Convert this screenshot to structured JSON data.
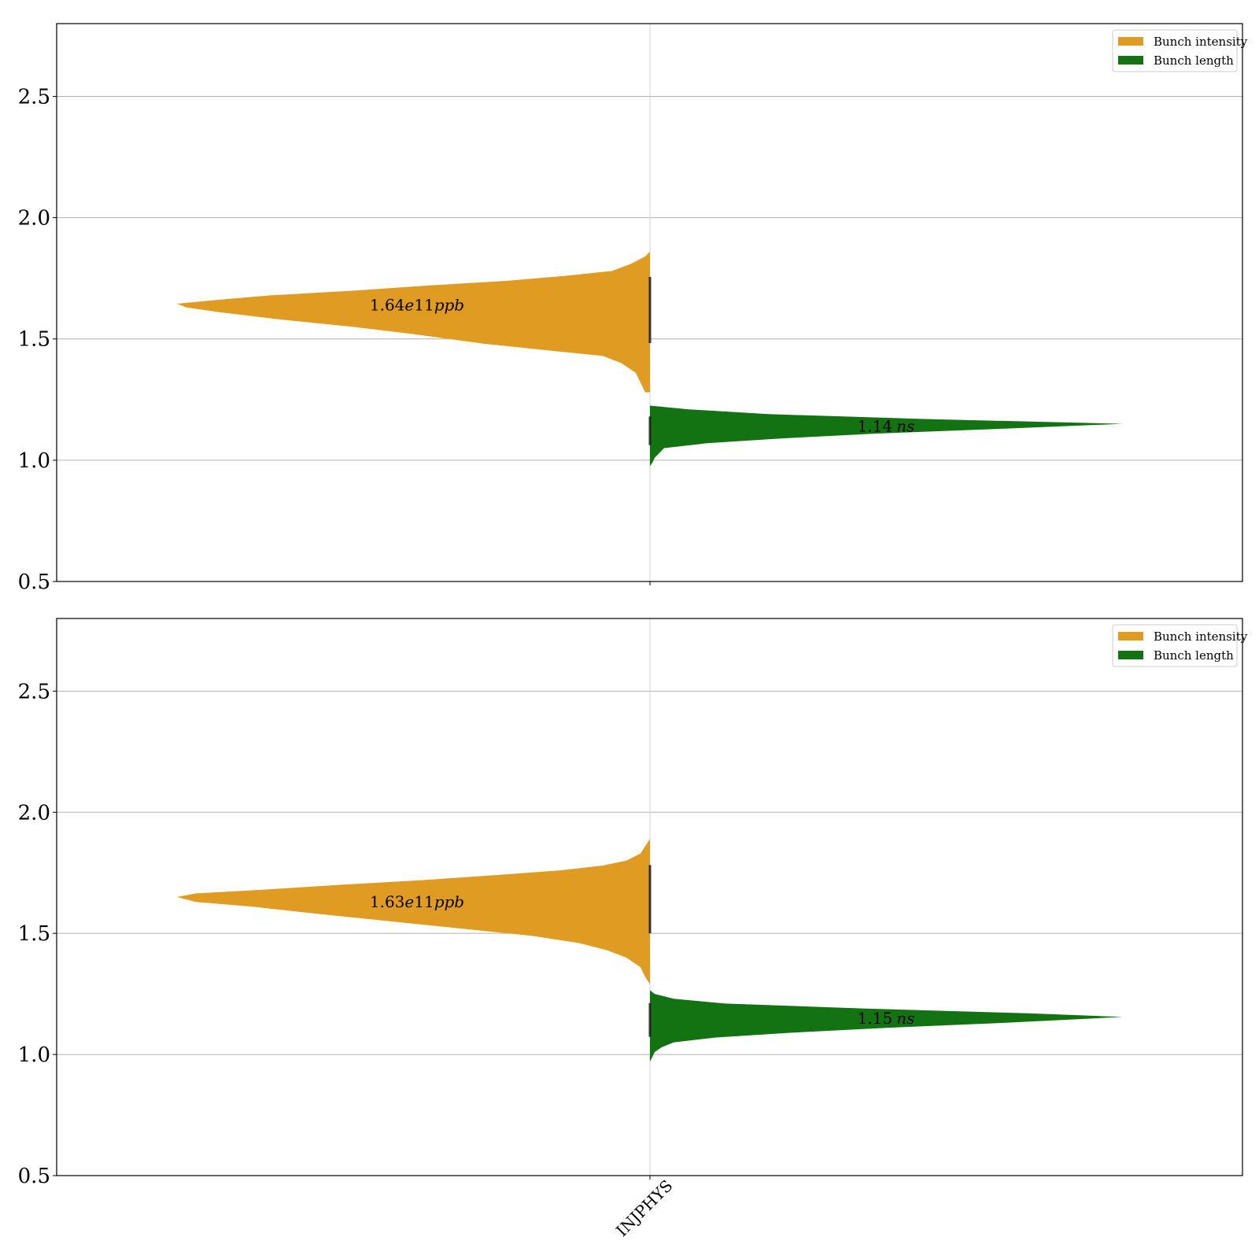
{
  "chart_data": [
    {
      "type": "violin",
      "ylim": [
        0.5,
        2.8
      ],
      "yticks": [
        "0.5",
        "1.0",
        "1.5",
        "2.0",
        "2.5"
      ],
      "ytick_values": [
        0.5,
        1.0,
        1.5,
        2.0,
        2.5
      ],
      "grid": true,
      "legend_placement": "top-right",
      "category": "INJPHYS",
      "series": [
        {
          "name": "Bunch intensity",
          "color": "#e09b22",
          "side": "left",
          "annotation": {
            "value": "1.64",
            "unit_mid": "e",
            "unit_exp": "11",
            "unit_tail": "ppb",
            "y": 1.64
          },
          "profile": [
            [
              1.28,
              0.01
            ],
            [
              1.32,
              0.02
            ],
            [
              1.36,
              0.03
            ],
            [
              1.4,
              0.06
            ],
            [
              1.43,
              0.1
            ],
            [
              1.45,
              0.2
            ],
            [
              1.48,
              0.35
            ],
            [
              1.52,
              0.5
            ],
            [
              1.55,
              0.63
            ],
            [
              1.58,
              0.78
            ],
            [
              1.61,
              0.91
            ],
            [
              1.63,
              0.98
            ],
            [
              1.645,
              1.0
            ],
            [
              1.66,
              0.92
            ],
            [
              1.68,
              0.8
            ],
            [
              1.7,
              0.62
            ],
            [
              1.72,
              0.47
            ],
            [
              1.74,
              0.3
            ],
            [
              1.76,
              0.18
            ],
            [
              1.78,
              0.08
            ],
            [
              1.81,
              0.04
            ],
            [
              1.84,
              0.01
            ],
            [
              1.86,
              0.0
            ]
          ]
        },
        {
          "name": "Bunch length",
          "color": "#137313",
          "side": "right",
          "annotation": {
            "value": "1.14",
            "unit_mid": "",
            "unit_exp": "",
            "unit_tail": "ns",
            "y": 1.14
          },
          "profile": [
            [
              0.975,
              0.0
            ],
            [
              0.99,
              0.005
            ],
            [
              1.01,
              0.01
            ],
            [
              1.03,
              0.02
            ],
            [
              1.05,
              0.03
            ],
            [
              1.07,
              0.12
            ],
            [
              1.09,
              0.28
            ],
            [
              1.11,
              0.48
            ],
            [
              1.13,
              0.75
            ],
            [
              1.15,
              1.0
            ],
            [
              1.17,
              0.58
            ],
            [
              1.19,
              0.25
            ],
            [
              1.21,
              0.08
            ],
            [
              1.225,
              0.0
            ]
          ]
        }
      ]
    },
    {
      "type": "violin",
      "ylim": [
        0.5,
        2.8
      ],
      "yticks": [
        "0.5",
        "1.0",
        "1.5",
        "2.0",
        "2.5"
      ],
      "ytick_values": [
        0.5,
        1.0,
        1.5,
        2.0,
        2.5
      ],
      "grid": true,
      "legend_placement": "top-right",
      "category": "INJPHYS",
      "series": [
        {
          "name": "Bunch intensity",
          "color": "#e09b22",
          "side": "left",
          "annotation": {
            "value": "1.63",
            "unit_mid": "e",
            "unit_exp": "11",
            "unit_tail": "ppb",
            "y": 1.63
          },
          "profile": [
            [
              1.29,
              0.0
            ],
            [
              1.32,
              0.01
            ],
            [
              1.36,
              0.02
            ],
            [
              1.4,
              0.05
            ],
            [
              1.43,
              0.09
            ],
            [
              1.46,
              0.15
            ],
            [
              1.49,
              0.25
            ],
            [
              1.52,
              0.4
            ],
            [
              1.55,
              0.55
            ],
            [
              1.58,
              0.7
            ],
            [
              1.61,
              0.84
            ],
            [
              1.63,
              0.96
            ],
            [
              1.65,
              1.0
            ],
            [
              1.665,
              0.96
            ],
            [
              1.68,
              0.82
            ],
            [
              1.7,
              0.66
            ],
            [
              1.72,
              0.48
            ],
            [
              1.74,
              0.33
            ],
            [
              1.76,
              0.19
            ],
            [
              1.78,
              0.1
            ],
            [
              1.8,
              0.05
            ],
            [
              1.83,
              0.02
            ],
            [
              1.86,
              0.01
            ],
            [
              1.89,
              0.0
            ]
          ]
        },
        {
          "name": "Bunch length",
          "color": "#137313",
          "side": "right",
          "annotation": {
            "value": "1.15",
            "unit_mid": "",
            "unit_exp": "",
            "unit_tail": "ns",
            "y": 1.15
          },
          "profile": [
            [
              0.97,
              0.0
            ],
            [
              0.99,
              0.005
            ],
            [
              1.01,
              0.01
            ],
            [
              1.03,
              0.025
            ],
            [
              1.05,
              0.05
            ],
            [
              1.07,
              0.14
            ],
            [
              1.09,
              0.3
            ],
            [
              1.11,
              0.5
            ],
            [
              1.13,
              0.74
            ],
            [
              1.155,
              1.0
            ],
            [
              1.17,
              0.8
            ],
            [
              1.19,
              0.45
            ],
            [
              1.21,
              0.16
            ],
            [
              1.23,
              0.05
            ],
            [
              1.25,
              0.01
            ],
            [
              1.265,
              0.0
            ]
          ]
        }
      ]
    }
  ]
}
